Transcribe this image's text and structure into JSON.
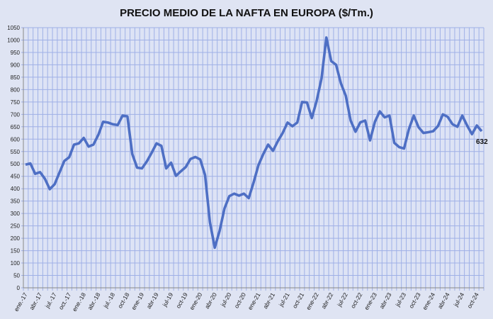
{
  "chart_data": {
    "type": "line",
    "title": "PRECIO MEDIO DE LA NAFTA EN EUROPA ($/Tm.)",
    "xlabel": "",
    "ylabel": "",
    "ylim": [
      0,
      1050
    ],
    "ytick_step": 50,
    "grid": true,
    "legend": "none",
    "line_color": "#4e6fc4",
    "x_tick_labels": [
      "ene.-17",
      "abr.-17",
      "jul.-17",
      "oct.-17",
      "ene.-18",
      "abr.-18",
      "jul.-18",
      "oct-18",
      "ene-19",
      "abr-19",
      "jul-19",
      "oct-19",
      "ene-20",
      "abr-20",
      "jul-20",
      "oct-20",
      "ene-21",
      "abr-21",
      "jul-21",
      "oct-21",
      "ene-22",
      "abr-22",
      "jul-22",
      "oct-22",
      "ene-23",
      "abr-23",
      "jul-23",
      "oct-23",
      "ene-24",
      "abr-24",
      "jul-24",
      "oct-24"
    ],
    "series": [
      {
        "values": [
          497,
          502,
          460,
          467,
          440,
          398,
          418,
          465,
          512,
          527,
          578,
          583,
          605,
          570,
          578,
          617,
          670,
          667,
          660,
          657,
          695,
          692,
          540,
          485,
          482,
          510,
          545,
          583,
          573,
          482,
          505,
          452,
          470,
          487,
          520,
          528,
          518,
          455,
          265,
          162,
          230,
          320,
          370,
          380,
          372,
          380,
          362,
          425,
          495,
          540,
          578,
          553,
          592,
          625,
          667,
          652,
          667,
          750,
          748,
          685,
          755,
          845,
          1010,
          915,
          900,
          825,
          775,
          675,
          630,
          668,
          675,
          595,
          670,
          712,
          688,
          695,
          585,
          568,
          562,
          640,
          695,
          648,
          625,
          628,
          632,
          653,
          700,
          690,
          660,
          650,
          695,
          655,
          620,
          655,
          632
        ]
      }
    ],
    "end_label": "632"
  }
}
